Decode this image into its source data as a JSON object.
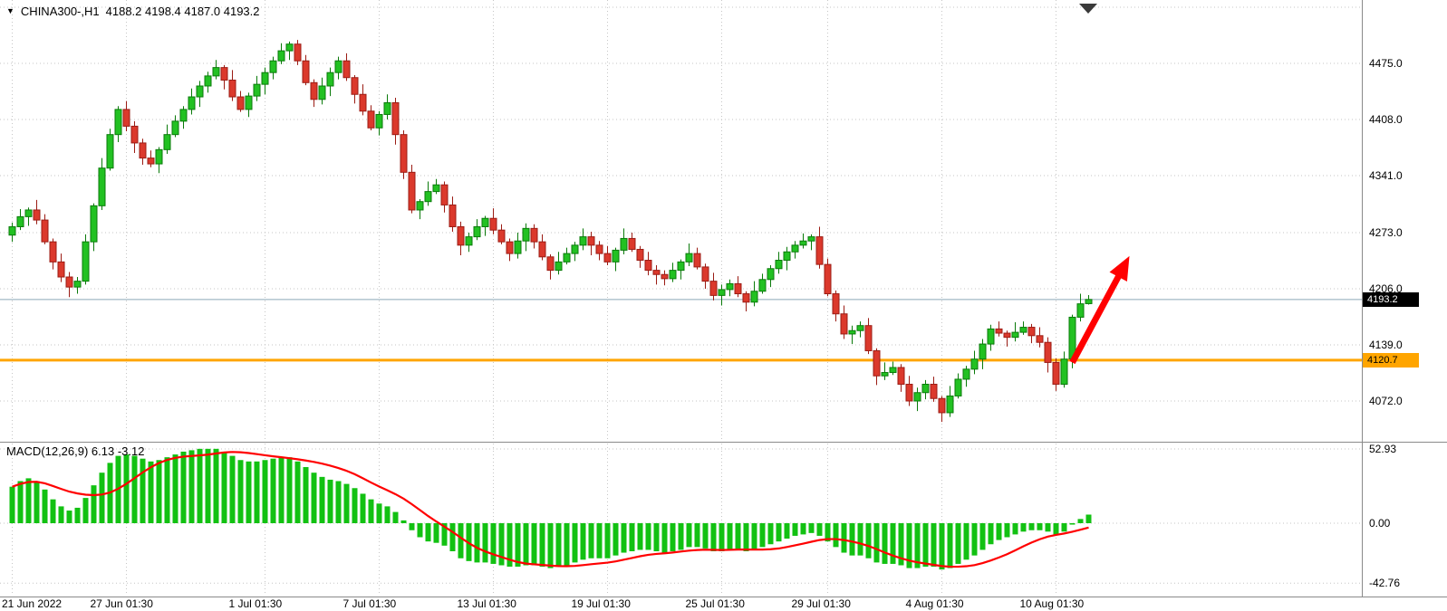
{
  "header": {
    "marker": "▼",
    "symbol": "CHINA300-,H1",
    "ohlc": "4188.2 4198.4 4187.0 4193.2"
  },
  "macd_header": "MACD(12,26,9) 6.13 -3.12",
  "colors": {
    "background": "#ffffff",
    "grid": "#c6c6c6",
    "bull": "#22c122",
    "bull_border": "#0a7a0a",
    "bear": "#db392c",
    "bear_border": "#9b1c14",
    "histogram": "#12c112",
    "signal": "#ff0000",
    "bid_line": "#8ca8b8",
    "hline": "#ffa500",
    "arrow": "#ff0000",
    "bid_badge_bg": "#000000",
    "bid_badge_text": "#ffffff",
    "hline_badge_bg": "#ffa500",
    "hline_badge_text": "#000000",
    "text": "#000000",
    "shift_marker": "#3a3a3a"
  },
  "chart_data": [
    {
      "type": "candlestick",
      "title": "CHINA300-,H1",
      "ohlc_display": [
        4188.2,
        4198.4,
        4187.0,
        4193.2
      ],
      "bid": {
        "value": 4193.2,
        "label": "4193.2"
      },
      "hline": {
        "value": 4120.7,
        "label": "4120.7"
      },
      "y_ticks": [
        {
          "label": "4475.0",
          "value": 4475
        },
        {
          "label": "4408.0",
          "value": 4408
        },
        {
          "label": "4341.0",
          "value": 4341
        },
        {
          "label": "4273.0",
          "value": 4273
        },
        {
          "label": "4206.0",
          "value": 4206
        },
        {
          "label": "4139.0",
          "value": 4139
        },
        {
          "label": "4072.0",
          "value": 4072
        }
      ],
      "x_ticks": [
        {
          "label": "21 Jun 2022",
          "i": 0
        },
        {
          "label": "27 Jun 01:30",
          "i": 14
        },
        {
          "label": "1 Jul 01:30",
          "i": 31
        },
        {
          "label": "7 Jul 01:30",
          "i": 45
        },
        {
          "label": "13 Jul 01:30",
          "i": 59
        },
        {
          "label": "19 Jul 01:30",
          "i": 73
        },
        {
          "label": "25 Jul 01:30",
          "i": 87
        },
        {
          "label": "29 Jul 01:30",
          "i": 100
        },
        {
          "label": "4 Aug 01:30",
          "i": 114
        },
        {
          "label": "10 Aug 01:30",
          "i": 128
        }
      ],
      "annotations": [
        {
          "type": "arrow",
          "direction": "up-right",
          "color": "#ff0000",
          "from": {
            "i": 130,
            "price": 4118
          },
          "to": {
            "i": 137,
            "price": 4245
          }
        }
      ],
      "candles": [
        [
          4270,
          4285,
          4262,
          4280
        ],
        [
          4280,
          4301,
          4276,
          4292
        ],
        [
          4292,
          4303,
          4281,
          4300
        ],
        [
          4300,
          4312,
          4283,
          4288
        ],
        [
          4288,
          4295,
          4259,
          4262
        ],
        [
          4262,
          4266,
          4229,
          4238
        ],
        [
          4238,
          4248,
          4214,
          4220
        ],
        [
          4220,
          4226,
          4196,
          4208
        ],
        [
          4208,
          4220,
          4200,
          4215
        ],
        [
          4215,
          4271,
          4211,
          4262
        ],
        [
          4262,
          4308,
          4251,
          4305
        ],
        [
          4305,
          4362,
          4300,
          4350
        ],
        [
          4350,
          4397,
          4347,
          4390
        ],
        [
          4390,
          4424,
          4381,
          4420
        ],
        [
          4420,
          4430,
          4394,
          4400
        ],
        [
          4400,
          4406,
          4368,
          4380
        ],
        [
          4380,
          4385,
          4354,
          4362
        ],
        [
          4362,
          4371,
          4351,
          4355
        ],
        [
          4355,
          4375,
          4344,
          4372
        ],
        [
          4372,
          4402,
          4367,
          4390
        ],
        [
          4390,
          4413,
          4387,
          4406
        ],
        [
          4406,
          4424,
          4397,
          4420
        ],
        [
          4420,
          4445,
          4414,
          4435
        ],
        [
          4435,
          4454,
          4423,
          4448
        ],
        [
          4448,
          4465,
          4440,
          4460
        ],
        [
          4460,
          4479,
          4456,
          4470
        ],
        [
          4470,
          4473,
          4444,
          4455
        ],
        [
          4455,
          4467,
          4430,
          4435
        ],
        [
          4435,
          4442,
          4417,
          4420
        ],
        [
          4420,
          4440,
          4411,
          4436
        ],
        [
          4436,
          4460,
          4430,
          4450
        ],
        [
          4450,
          4470,
          4438,
          4464
        ],
        [
          4464,
          4483,
          4456,
          4478
        ],
        [
          4478,
          4499,
          4474,
          4490
        ],
        [
          4490,
          4501,
          4479,
          4498
        ],
        [
          4498,
          4503,
          4473,
          4478
        ],
        [
          4478,
          4485,
          4449,
          4452
        ],
        [
          4452,
          4456,
          4423,
          4432
        ],
        [
          4432,
          4458,
          4426,
          4448
        ],
        [
          4448,
          4470,
          4436,
          4464
        ],
        [
          4464,
          4483,
          4456,
          4478
        ],
        [
          4478,
          4487,
          4454,
          4458
        ],
        [
          4458,
          4461,
          4427,
          4438
        ],
        [
          4438,
          4450,
          4413,
          4418
        ],
        [
          4418,
          4425,
          4395,
          4398
        ],
        [
          4398,
          4418,
          4389,
          4414
        ],
        [
          4414,
          4438,
          4408,
          4428
        ],
        [
          4428,
          4434,
          4378,
          4390
        ],
        [
          4390,
          4395,
          4337,
          4345
        ],
        [
          4345,
          4354,
          4296,
          4300
        ],
        [
          4300,
          4313,
          4289,
          4310
        ],
        [
          4310,
          4334,
          4305,
          4322
        ],
        [
          4322,
          4337,
          4319,
          4330
        ],
        [
          4330,
          4334,
          4297,
          4306
        ],
        [
          4306,
          4316,
          4274,
          4280
        ],
        [
          4280,
          4286,
          4246,
          4258
        ],
        [
          4258,
          4273,
          4250,
          4268
        ],
        [
          4268,
          4289,
          4264,
          4280
        ],
        [
          4280,
          4293,
          4269,
          4290
        ],
        [
          4290,
          4302,
          4271,
          4276
        ],
        [
          4276,
          4283,
          4259,
          4262
        ],
        [
          4262,
          4266,
          4239,
          4248
        ],
        [
          4248,
          4273,
          4242,
          4263
        ],
        [
          4263,
          4284,
          4251,
          4278
        ],
        [
          4278,
          4283,
          4254,
          4262
        ],
        [
          4262,
          4271,
          4240,
          4244
        ],
        [
          4244,
          4247,
          4217,
          4228
        ],
        [
          4228,
          4250,
          4223,
          4238
        ],
        [
          4238,
          4255,
          4235,
          4248
        ],
        [
          4248,
          4262,
          4239,
          4258
        ],
        [
          4258,
          4278,
          4252,
          4268
        ],
        [
          4268,
          4274,
          4246,
          4258
        ],
        [
          4258,
          4263,
          4240,
          4248
        ],
        [
          4248,
          4257,
          4234,
          4238
        ],
        [
          4238,
          4255,
          4227,
          4252
        ],
        [
          4252,
          4278,
          4247,
          4266
        ],
        [
          4266,
          4273,
          4250,
          4253
        ],
        [
          4253,
          4257,
          4231,
          4240
        ],
        [
          4240,
          4250,
          4222,
          4228
        ],
        [
          4228,
          4234,
          4211,
          4223
        ],
        [
          4223,
          4228,
          4210,
          4218
        ],
        [
          4218,
          4237,
          4214,
          4228
        ],
        [
          4228,
          4241,
          4217,
          4238
        ],
        [
          4238,
          4260,
          4233,
          4248
        ],
        [
          4248,
          4255,
          4229,
          4232
        ],
        [
          4232,
          4236,
          4206,
          4215
        ],
        [
          4215,
          4225,
          4192,
          4198
        ],
        [
          4198,
          4211,
          4186,
          4205
        ],
        [
          4205,
          4217,
          4197,
          4212
        ],
        [
          4212,
          4221,
          4196,
          4200
        ],
        [
          4200,
          4203,
          4179,
          4190
        ],
        [
          4190,
          4215,
          4185,
          4203
        ],
        [
          4203,
          4224,
          4200,
          4217
        ],
        [
          4217,
          4234,
          4208,
          4230
        ],
        [
          4230,
          4250,
          4224,
          4240
        ],
        [
          4240,
          4256,
          4228,
          4250
        ],
        [
          4250,
          4263,
          4242,
          4258
        ],
        [
          4258,
          4272,
          4254,
          4263
        ],
        [
          4263,
          4271,
          4252,
          4268
        ],
        [
          4268,
          4280,
          4230,
          4235
        ],
        [
          4235,
          4242,
          4197,
          4200
        ],
        [
          4200,
          4204,
          4167,
          4176
        ],
        [
          4176,
          4186,
          4146,
          4152
        ],
        [
          4152,
          4162,
          4140,
          4156
        ],
        [
          4156,
          4167,
          4148,
          4162
        ],
        [
          4162,
          4171,
          4128,
          4132
        ],
        [
          4132,
          4135,
          4091,
          4102
        ],
        [
          4102,
          4118,
          4097,
          4106
        ],
        [
          4106,
          4119,
          4103,
          4112
        ],
        [
          4112,
          4116,
          4083,
          4092
        ],
        [
          4092,
          4102,
          4066,
          4072
        ],
        [
          4072,
          4088,
          4060,
          4082
        ],
        [
          4082,
          4097,
          4074,
          4092
        ],
        [
          4092,
          4101,
          4071,
          4075
        ],
        [
          4075,
          4078,
          4047,
          4058
        ],
        [
          4058,
          4090,
          4053,
          4078
        ],
        [
          4078,
          4105,
          4075,
          4098
        ],
        [
          4098,
          4114,
          4089,
          4110
        ],
        [
          4110,
          4132,
          4104,
          4122
        ],
        [
          4122,
          4146,
          4110,
          4140
        ],
        [
          4140,
          4163,
          4132,
          4158
        ],
        [
          4158,
          4167,
          4149,
          4153
        ],
        [
          4153,
          4156,
          4137,
          4148
        ],
        [
          4148,
          4166,
          4143,
          4154
        ],
        [
          4154,
          4167,
          4151,
          4160
        ],
        [
          4160,
          4164,
          4141,
          4150
        ],
        [
          4150,
          4160,
          4136,
          4142
        ],
        [
          4142,
          4148,
          4106,
          4118
        ],
        [
          4118,
          4123,
          4084,
          4092
        ],
        [
          4092,
          4131,
          4088,
          4122
        ],
        [
          4122,
          4175,
          4111,
          4172
        ],
        [
          4172,
          4200,
          4167,
          4188
        ],
        [
          4188.2,
          4198.4,
          4187.0,
          4193.2
        ]
      ]
    },
    {
      "type": "bar",
      "title": "MACD(12,26,9)",
      "last_macd": 6.13,
      "last_signal": -3.12,
      "signal_method": "sma9",
      "y_ticks": [
        {
          "label": "52.93",
          "value": 52.93
        },
        {
          "label": "0.00",
          "value": 0
        },
        {
          "label": "-42.76",
          "value": -42.76
        }
      ],
      "histogram": [
        26,
        30,
        32,
        30,
        24,
        17,
        12,
        9,
        11,
        18,
        27,
        36,
        43,
        48,
        49,
        48,
        46,
        44,
        45,
        47,
        49,
        51,
        52,
        53,
        53,
        53,
        51,
        48,
        45,
        44,
        44,
        45,
        46,
        47,
        47,
        44,
        40,
        36,
        33,
        31,
        30,
        28,
        25,
        21,
        17,
        14,
        12,
        8,
        2,
        -5,
        -10,
        -13,
        -14,
        -16,
        -20,
        -25,
        -27,
        -28,
        -28,
        -29,
        -30,
        -31,
        -31,
        -30,
        -30,
        -31,
        -32,
        -31,
        -30,
        -28,
        -26,
        -25,
        -25,
        -25,
        -23,
        -21,
        -20,
        -19,
        -19,
        -20,
        -21,
        -20,
        -19,
        -17,
        -17,
        -18,
        -20,
        -20,
        -19,
        -19,
        -20,
        -19,
        -17,
        -15,
        -13,
        -11,
        -9,
        -8,
        -7,
        -9,
        -13,
        -17,
        -21,
        -23,
        -23,
        -25,
        -28,
        -29,
        -29,
        -30,
        -32,
        -32,
        -31,
        -31,
        -33,
        -32,
        -29,
        -26,
        -23,
        -19,
        -15,
        -12,
        -10,
        -8,
        -6,
        -5,
        -5,
        -6,
        -8,
        -6,
        -1,
        3,
        6.13
      ]
    }
  ]
}
